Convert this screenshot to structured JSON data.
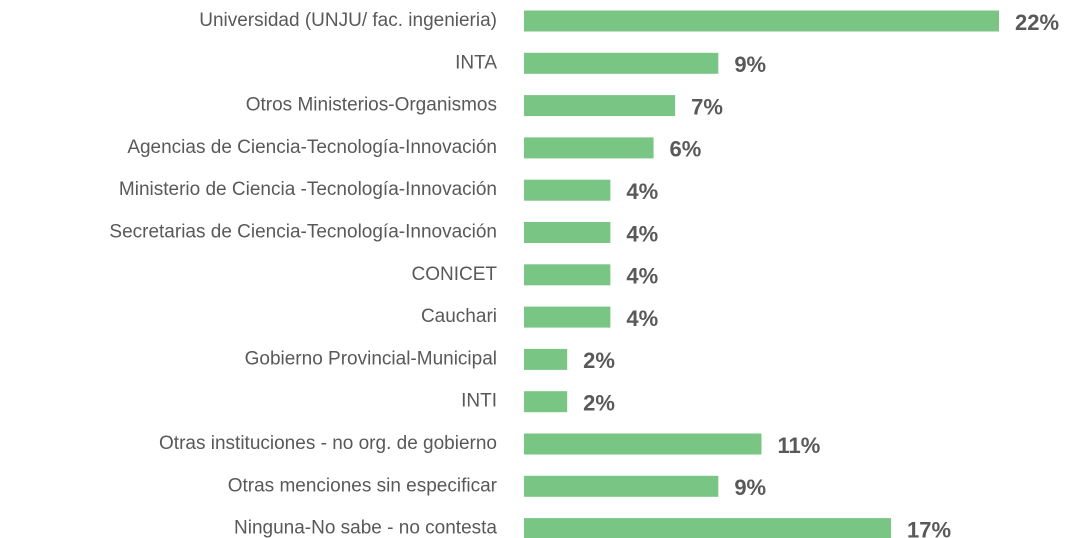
{
  "chart_data": {
    "type": "bar",
    "orientation": "horizontal",
    "categories": [
      "Universidad (UNJU/ fac. ingenieria)",
      "INTA",
      "Otros Ministerios-Organismos",
      "Agencias de Ciencia-Tecnología-Innovación",
      "Ministerio de Ciencia -Tecnología-Innovación",
      "Secretarias de Ciencia-Tecnología-Innovación",
      "CONICET",
      "Cauchari",
      "Gobierno Provincial-Municipal",
      "INTI",
      "Otras instituciones - no org. de gobierno",
      "Otras menciones sin especificar",
      "Ninguna-No sabe - no contesta"
    ],
    "values": [
      22,
      9,
      7,
      6,
      4,
      4,
      4,
      4,
      2,
      2,
      11,
      9,
      17
    ],
    "value_labels": [
      "22%",
      "9%",
      "7%",
      "6%",
      "4%",
      "4%",
      "4%",
      "4%",
      "2%",
      "2%",
      "11%",
      "9%",
      "17%"
    ],
    "color": "#78c584"
  }
}
